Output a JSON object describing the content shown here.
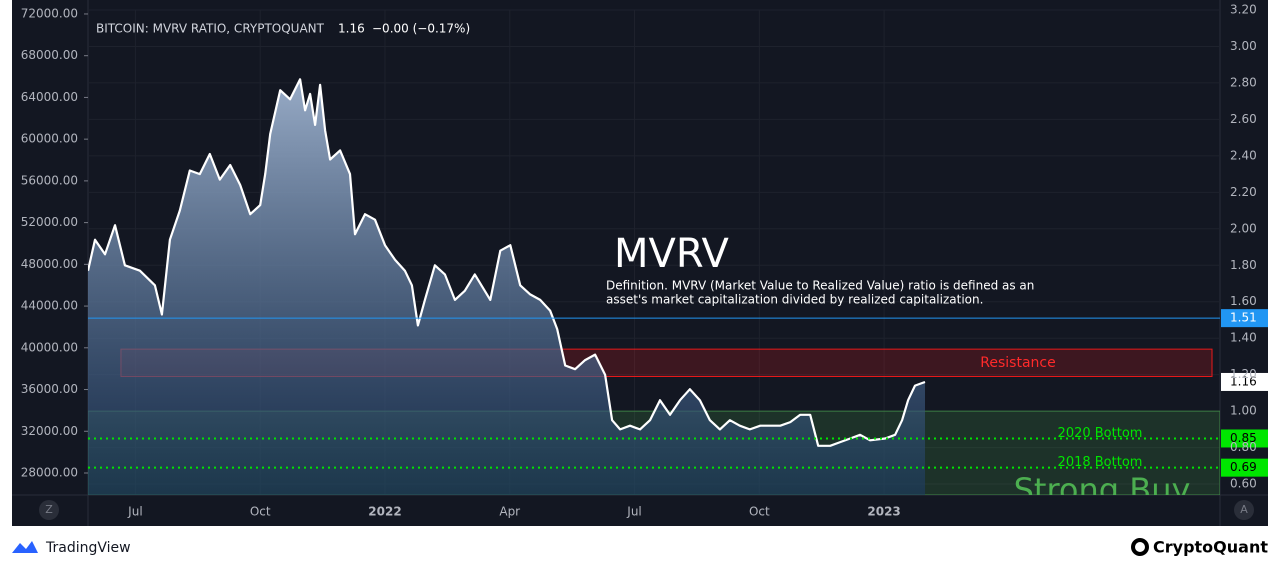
{
  "chart_data": {
    "type": "area",
    "title": "BITCOIN: MVRV RATIO, CRYPTOQUANT",
    "change": "−0.00 (−0.17%)",
    "series": [
      {
        "name": "MVRV",
        "color": "#ffffff",
        "x": [
          2021.405,
          2021.419,
          2021.439,
          2021.459,
          2021.479,
          2021.509,
          2021.539,
          2021.553,
          2021.569,
          2021.589,
          2021.609,
          2021.629,
          2021.649,
          2021.669,
          2021.69,
          2021.71,
          2021.73,
          2021.75,
          2021.76,
          2021.77,
          2021.79,
          2021.81,
          2021.83,
          2021.84,
          2021.85,
          2021.86,
          2021.87,
          2021.88,
          2021.89,
          2021.91,
          2021.93,
          2021.94,
          2021.96,
          2021.98,
          2022.0,
          2022.02,
          2022.04,
          2022.054,
          2022.066,
          2022.08,
          2022.1,
          2022.12,
          2022.14,
          2022.16,
          2022.18,
          2022.211,
          2022.231,
          2022.251,
          2022.271,
          2022.291,
          2022.311,
          2022.331,
          2022.345,
          2022.361,
          2022.381,
          2022.401,
          2022.421,
          2022.441,
          2022.455,
          2022.471,
          2022.491,
          2022.511,
          2022.531,
          2022.551,
          2022.571,
          2022.591,
          2022.611,
          2022.631,
          2022.651,
          2022.671,
          2022.691,
          2022.711,
          2022.731,
          2022.752,
          2022.772,
          2022.792,
          2022.812,
          2022.832,
          2022.852,
          2022.868,
          2022.892,
          2022.912,
          2022.932,
          2022.952,
          2022.972,
          2023.002,
          2023.022,
          2023.036,
          2023.048,
          2023.062,
          2023.082
        ],
        "values": [
          1.77,
          1.94,
          1.86,
          2.02,
          1.8,
          1.77,
          1.69,
          1.53,
          1.94,
          2.1,
          2.32,
          2.3,
          2.41,
          2.27,
          2.35,
          2.24,
          2.08,
          2.13,
          2.3,
          2.52,
          2.76,
          2.71,
          2.82,
          2.65,
          2.74,
          2.57,
          2.79,
          2.54,
          2.38,
          2.43,
          2.3,
          1.97,
          2.08,
          2.05,
          1.91,
          1.83,
          1.77,
          1.69,
          1.47,
          1.61,
          1.8,
          1.75,
          1.61,
          1.66,
          1.75,
          1.61,
          1.88,
          1.91,
          1.69,
          1.64,
          1.61,
          1.55,
          1.45,
          1.25,
          1.23,
          1.28,
          1.31,
          1.2,
          0.95,
          0.9,
          0.92,
          0.9,
          0.95,
          1.06,
          0.98,
          1.06,
          1.12,
          1.06,
          0.95,
          0.9,
          0.95,
          0.92,
          0.9,
          0.92,
          0.92,
          0.92,
          0.94,
          0.98,
          0.98,
          0.81,
          0.81,
          0.83,
          0.85,
          0.87,
          0.84,
          0.85,
          0.87,
          0.95,
          1.06,
          1.14,
          1.16
        ]
      }
    ],
    "xlim": [
      2021.405,
      2023.673
    ],
    "xticks": [
      {
        "value": 2021.5,
        "label": "Jul"
      },
      {
        "value": 2021.75,
        "label": "Oct"
      },
      {
        "value": 2022,
        "label": "2022"
      },
      {
        "value": 2022.25,
        "label": "Apr"
      },
      {
        "value": 2022.5,
        "label": "Jul"
      },
      {
        "value": 2022.75,
        "label": "Oct"
      },
      {
        "value": 2023,
        "label": "2023"
      }
    ],
    "ylim": [
      0.54,
      3.2
    ],
    "yticks": [
      {
        "value": 0.6,
        "label": "0.60"
      },
      {
        "value": 0.8,
        "label": "0.80"
      },
      {
        "value": 1.0,
        "label": "1.00"
      },
      {
        "value": 1.2,
        "label": "1.20"
      },
      {
        "value": 1.4,
        "label": "1.40"
      },
      {
        "value": 1.6,
        "label": "1.60"
      },
      {
        "value": 1.8,
        "label": "1.80"
      },
      {
        "value": 2.0,
        "label": "2.00"
      },
      {
        "value": 2.2,
        "label": "2.20"
      },
      {
        "value": 2.4,
        "label": "2.40"
      },
      {
        "value": 2.6,
        "label": "2.60"
      },
      {
        "value": 2.8,
        "label": "2.80"
      },
      {
        "value": 3.0,
        "label": "3.00"
      },
      {
        "value": 3.2,
        "label": "3.20"
      }
    ],
    "y2lim": [
      25890,
      72380
    ],
    "y2ticks": [
      {
        "value": 28000,
        "label": "28000.00"
      },
      {
        "value": 32000,
        "label": "32000.00"
      },
      {
        "value": 36000,
        "label": "36000.00"
      },
      {
        "value": 40000,
        "label": "40000.00"
      },
      {
        "value": 44000,
        "label": "44000.00"
      },
      {
        "value": 48000,
        "label": "48000.00"
      },
      {
        "value": 52000,
        "label": "52000.00"
      },
      {
        "value": 56000,
        "label": "56000.00"
      },
      {
        "value": 60000,
        "label": "60000.00"
      },
      {
        "value": 64000,
        "label": "64000.00"
      },
      {
        "value": 68000,
        "label": "68000.00"
      },
      {
        "value": 72000,
        "label": "72000.00"
      }
    ],
    "grid": true,
    "hlines": [
      {
        "value": 1.51,
        "color": "#2196f3",
        "style": "solid"
      },
      {
        "value": 0.85,
        "color": "#00e600",
        "style": "dotted",
        "label": "2020 Bottom"
      },
      {
        "value": 0.69,
        "color": "#00e600",
        "style": "dotted",
        "label": "2018 Bottom"
      }
    ],
    "zones": [
      {
        "label": "Resistance",
        "from": 1.19,
        "to": 1.34,
        "x0": 2021.471,
        "x1": 2023.657,
        "color": "#ff1a1a"
      },
      {
        "label": "Strong Buy",
        "from": 0.54,
        "to": 1.0,
        "x0": 2021.405,
        "x1": 2023.673,
        "color": "#4caf50"
      }
    ],
    "annotations": {
      "heading": "MVRV",
      "definition": [
        "Definition. MVRV (Market Value to Realized Value) ratio is defined as an",
        "asset's market capitalization divided by realized capitalization."
      ]
    }
  },
  "ui": {
    "buttons": [
      "Z",
      "A"
    ],
    "brand_left": "TradingView",
    "brand_right": "CryptoQuant"
  }
}
